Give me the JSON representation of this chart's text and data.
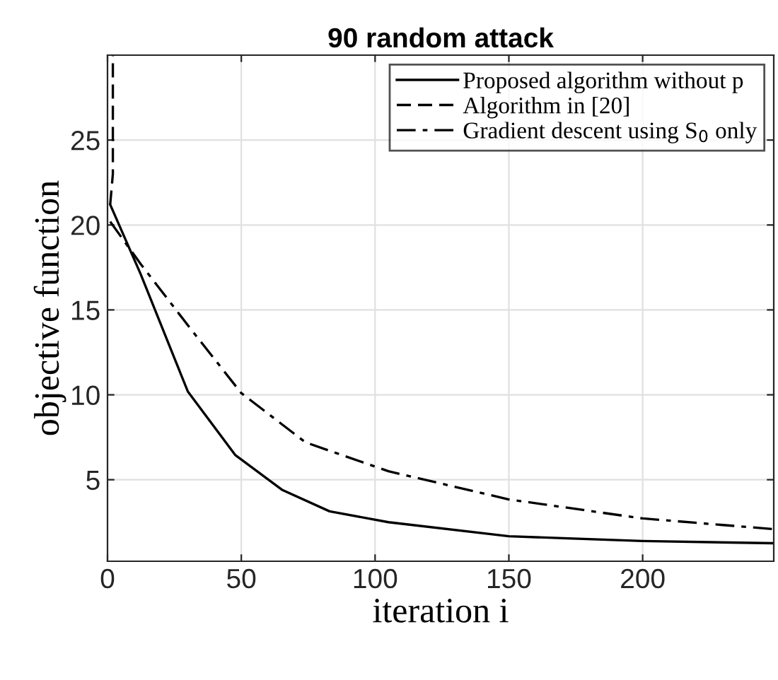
{
  "chart_data": {
    "type": "line",
    "title": "90 random attack",
    "xlabel": "iteration i",
    "ylabel": "objective function",
    "xlim": [
      0,
      249
    ],
    "ylim": [
      0.2,
      30
    ],
    "xticks": [
      0,
      50,
      100,
      150,
      200
    ],
    "yticks": [
      5,
      10,
      15,
      20,
      25
    ],
    "grid": true,
    "legend": "top right",
    "marker": "none",
    "series": [
      {
        "name": "Proposed algorithm without p",
        "color": "#000000",
        "line_style": "solid",
        "x": [
          1,
          12.4,
          30,
          47.7,
          65.4,
          83,
          105,
          150,
          200,
          249
        ],
        "values": [
          21.2,
          17.1,
          10.2,
          6.46,
          4.39,
          3.14,
          2.5,
          1.67,
          1.39,
          1.26
        ]
      },
      {
        "name": "Algorithm in [20]",
        "color": "#000000",
        "line_style": "dashed",
        "x": [
          1,
          2,
          2
        ],
        "values": [
          21.2,
          23,
          30
        ]
      },
      {
        "name": "Gradient descent using S$_{0}$ only",
        "color": "#000000",
        "line_style": "dashdot",
        "x": [
          1,
          12.4,
          30,
          50,
          74,
          105,
          150,
          200,
          249
        ],
        "values": [
          20.2,
          17.7,
          14.1,
          10.1,
          7.2,
          5.5,
          3.84,
          2.72,
          2.09
        ]
      }
    ]
  }
}
